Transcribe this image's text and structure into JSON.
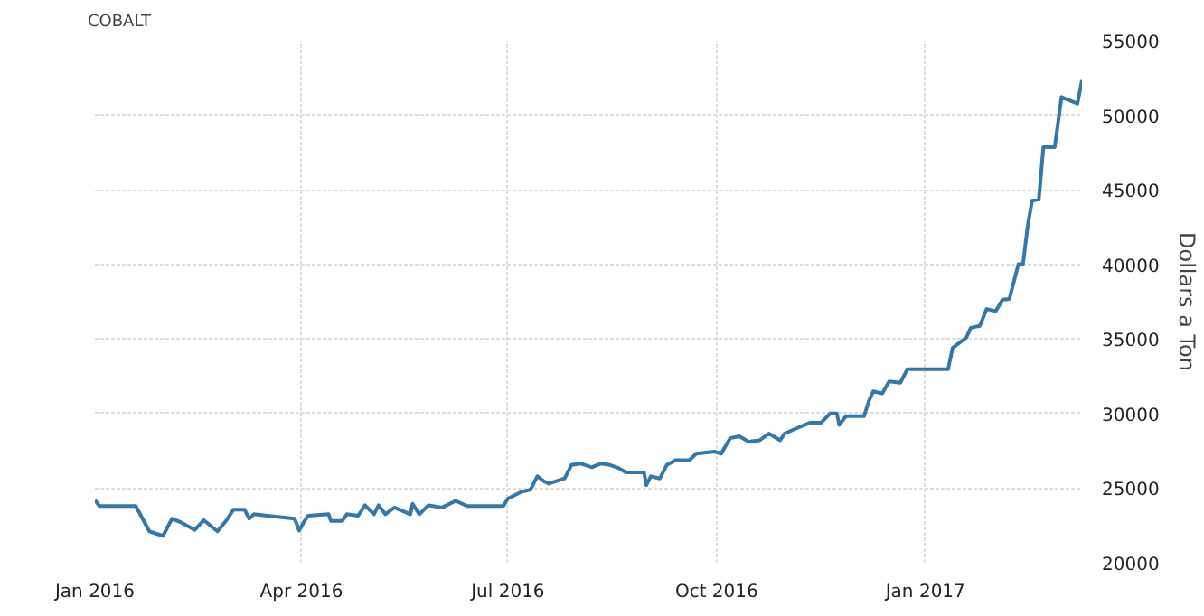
{
  "chart_data": {
    "type": "line",
    "title": "COBALT",
    "ylabel": "Dollars a Ton",
    "xlim": [
      "2016-01-01",
      "2017-03-11"
    ],
    "xticks": [
      {
        "value": "2016-01-01",
        "label": "Jan 2016"
      },
      {
        "value": "2016-04-01",
        "label": "Apr 2016"
      },
      {
        "value": "2016-07-01",
        "label": "Jul 2016"
      },
      {
        "value": "2016-10-01",
        "label": "Oct 2016"
      },
      {
        "value": "2017-01-01",
        "label": "Jan 2017"
      }
    ],
    "ylim": [
      20000,
      55000
    ],
    "yticks": [
      20000,
      25000,
      30000,
      35000,
      40000,
      45000,
      50000,
      55000
    ],
    "grid": true,
    "x": [
      "2016-01-01",
      "2016-01-03",
      "2016-01-19",
      "2016-01-25",
      "2016-01-31",
      "2016-02-04",
      "2016-02-08",
      "2016-02-14",
      "2016-02-18",
      "2016-02-24",
      "2016-02-28",
      "2016-03-02",
      "2016-03-07",
      "2016-03-09",
      "2016-03-11",
      "2016-03-17",
      "2016-03-29",
      "2016-03-31",
      "2016-04-02",
      "2016-04-04",
      "2016-04-13",
      "2016-04-14",
      "2016-04-19",
      "2016-04-21",
      "2016-04-26",
      "2016-04-29",
      "2016-05-03",
      "2016-05-05",
      "2016-05-08",
      "2016-05-12",
      "2016-05-19",
      "2016-05-20",
      "2016-05-23",
      "2016-05-27",
      "2016-06-02",
      "2016-06-08",
      "2016-06-13",
      "2016-06-29",
      "2016-07-01",
      "2016-07-07",
      "2016-07-11",
      "2016-07-14",
      "2016-07-17",
      "2016-07-19",
      "2016-07-26",
      "2016-07-29",
      "2016-08-02",
      "2016-08-07",
      "2016-08-11",
      "2016-08-15",
      "2016-08-19",
      "2016-08-22",
      "2016-08-30",
      "2016-08-31",
      "2016-09-02",
      "2016-09-06",
      "2016-09-09",
      "2016-09-13",
      "2016-09-19",
      "2016-09-22",
      "2016-09-30",
      "2016-10-03",
      "2016-10-07",
      "2016-10-11",
      "2016-10-15",
      "2016-10-20",
      "2016-10-24",
      "2016-10-29",
      "2016-10-31",
      "2016-11-04",
      "2016-11-11",
      "2016-11-16",
      "2016-11-20",
      "2016-11-23",
      "2016-11-24",
      "2016-11-27",
      "2016-12-05",
      "2016-12-07",
      "2016-12-09",
      "2016-12-13",
      "2016-12-16",
      "2016-12-21",
      "2016-12-24",
      "2017-01-11",
      "2017-01-13",
      "2017-01-19",
      "2017-01-21",
      "2017-01-25",
      "2017-01-28",
      "2017-02-01",
      "2017-02-04",
      "2017-02-07",
      "2017-02-11",
      "2017-02-13",
      "2017-02-15",
      "2017-02-17",
      "2017-02-20",
      "2017-02-22",
      "2017-02-27",
      "2017-03-02",
      "2017-03-04",
      "2017-03-09",
      "2017-03-11"
    ],
    "series": [
      {
        "color": "#3378ad",
        "values": [
          24200,
          23800,
          23800,
          22100,
          21800,
          22950,
          22700,
          22200,
          22850,
          22100,
          22850,
          23550,
          23550,
          22950,
          23250,
          23150,
          22950,
          22150,
          22700,
          23150,
          23250,
          22800,
          22800,
          23250,
          23150,
          23850,
          23250,
          23850,
          23250,
          23700,
          23250,
          23950,
          23250,
          23850,
          23700,
          24150,
          23800,
          23800,
          24300,
          24750,
          24900,
          25800,
          25450,
          25300,
          25650,
          26550,
          26650,
          26400,
          26650,
          26550,
          26330,
          26060,
          26060,
          25200,
          25790,
          25650,
          26550,
          26870,
          26870,
          27310,
          27450,
          27310,
          28350,
          28480,
          28120,
          28210,
          28660,
          28210,
          28660,
          28930,
          29380,
          29380,
          30000,
          30000,
          29240,
          29830,
          29830,
          30810,
          31490,
          31350,
          32160,
          32070,
          32970,
          32970,
          34400,
          35080,
          35750,
          35880,
          37010,
          36870,
          37630,
          37680,
          40010,
          40010,
          42480,
          44270,
          44360,
          47860,
          47860,
          51230,
          51090,
          50780,
          52350
        ]
      }
    ]
  }
}
